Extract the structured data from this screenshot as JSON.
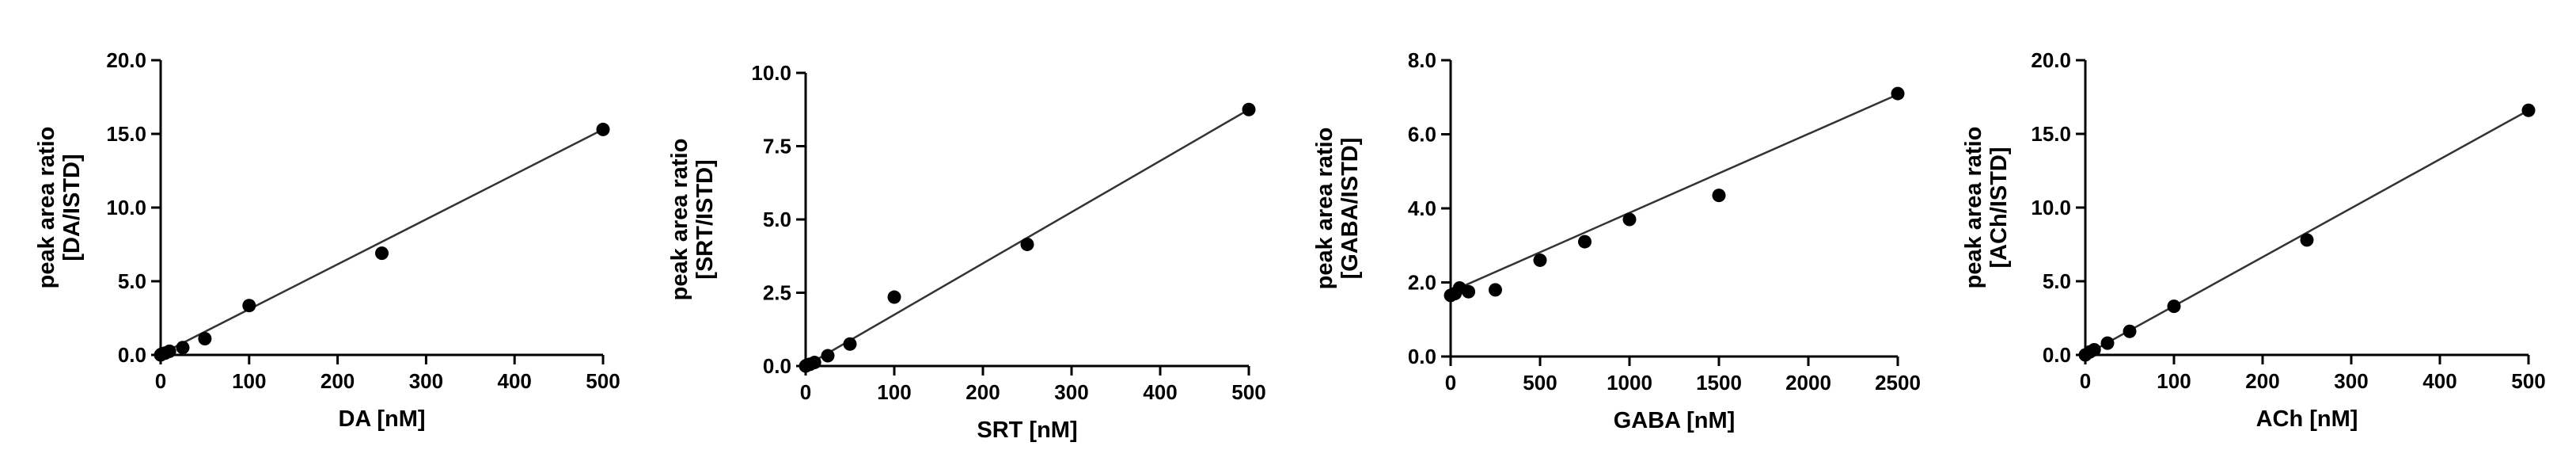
{
  "chart_data": [
    {
      "type": "scatter",
      "xlabel": "DA [nM]",
      "ylabel": [
        "peak area ratio",
        "[DA/ISTD]"
      ],
      "xlim": [
        0,
        500
      ],
      "ylim": [
        0,
        20
      ],
      "xticks": [
        0,
        100,
        200,
        300,
        400,
        500
      ],
      "yticks": [
        0,
        5,
        10,
        15,
        20
      ],
      "yticks_decimals": 1,
      "x": [
        0,
        1,
        5,
        10,
        25,
        50,
        100,
        250,
        500
      ],
      "y": [
        0.0,
        0.05,
        0.12,
        0.25,
        0.5,
        1.1,
        3.35,
        6.9,
        15.3
      ],
      "fit": {
        "slope": 0.0305,
        "intercept": 0.05
      },
      "grid": false,
      "legend": "none"
    },
    {
      "type": "scatter",
      "xlabel": "SRT [nM]",
      "ylabel": [
        "peak area ratio",
        "[SRT/ISTD]"
      ],
      "xlim": [
        0,
        500
      ],
      "ylim": [
        0,
        10
      ],
      "xticks": [
        0,
        100,
        200,
        300,
        400,
        500
      ],
      "yticks": [
        0,
        2.5,
        5,
        7.5,
        10
      ],
      "yticks_decimals": 1,
      "x": [
        0,
        1,
        5,
        10,
        25,
        50,
        100,
        250,
        500
      ],
      "y": [
        0.0,
        0.02,
        0.06,
        0.12,
        0.35,
        0.75,
        2.35,
        4.15,
        8.75
      ],
      "fit": {
        "slope": 0.0175,
        "intercept": 0.0
      },
      "grid": false,
      "legend": "none"
    },
    {
      "type": "scatter",
      "xlabel": "GABA [nM]",
      "ylabel": [
        "peak area ratio",
        "[GABA/ISTD]"
      ],
      "xlim": [
        0,
        2500
      ],
      "ylim": [
        0,
        8
      ],
      "xticks": [
        0,
        500,
        1000,
        1500,
        2000,
        2500
      ],
      "yticks": [
        0,
        2,
        4,
        6,
        8
      ],
      "yticks_decimals": 1,
      "x": [
        0,
        25,
        50,
        100,
        250,
        500,
        750,
        1000,
        1500,
        2500
      ],
      "y": [
        1.65,
        1.7,
        1.85,
        1.75,
        1.8,
        2.6,
        3.1,
        3.7,
        4.35,
        7.1
      ],
      "fit": {
        "slope": 0.00213,
        "intercept": 1.75
      },
      "grid": false,
      "legend": "none"
    },
    {
      "type": "scatter",
      "xlabel": "ACh [nM]",
      "ylabel": [
        "peak area ratio",
        "[ACh/ISTD]"
      ],
      "xlim": [
        0,
        500
      ],
      "ylim": [
        0,
        20
      ],
      "xticks": [
        0,
        100,
        200,
        300,
        400,
        500
      ],
      "yticks": [
        0,
        5,
        10,
        15,
        20
      ],
      "yticks_decimals": 1,
      "x": [
        0,
        5,
        10,
        25,
        50,
        100,
        250,
        500
      ],
      "y": [
        0.0,
        0.2,
        0.35,
        0.8,
        1.6,
        3.3,
        7.8,
        16.6
      ],
      "fit": {
        "slope": 0.0332,
        "intercept": 0.0
      },
      "grid": false,
      "legend": "none"
    }
  ]
}
